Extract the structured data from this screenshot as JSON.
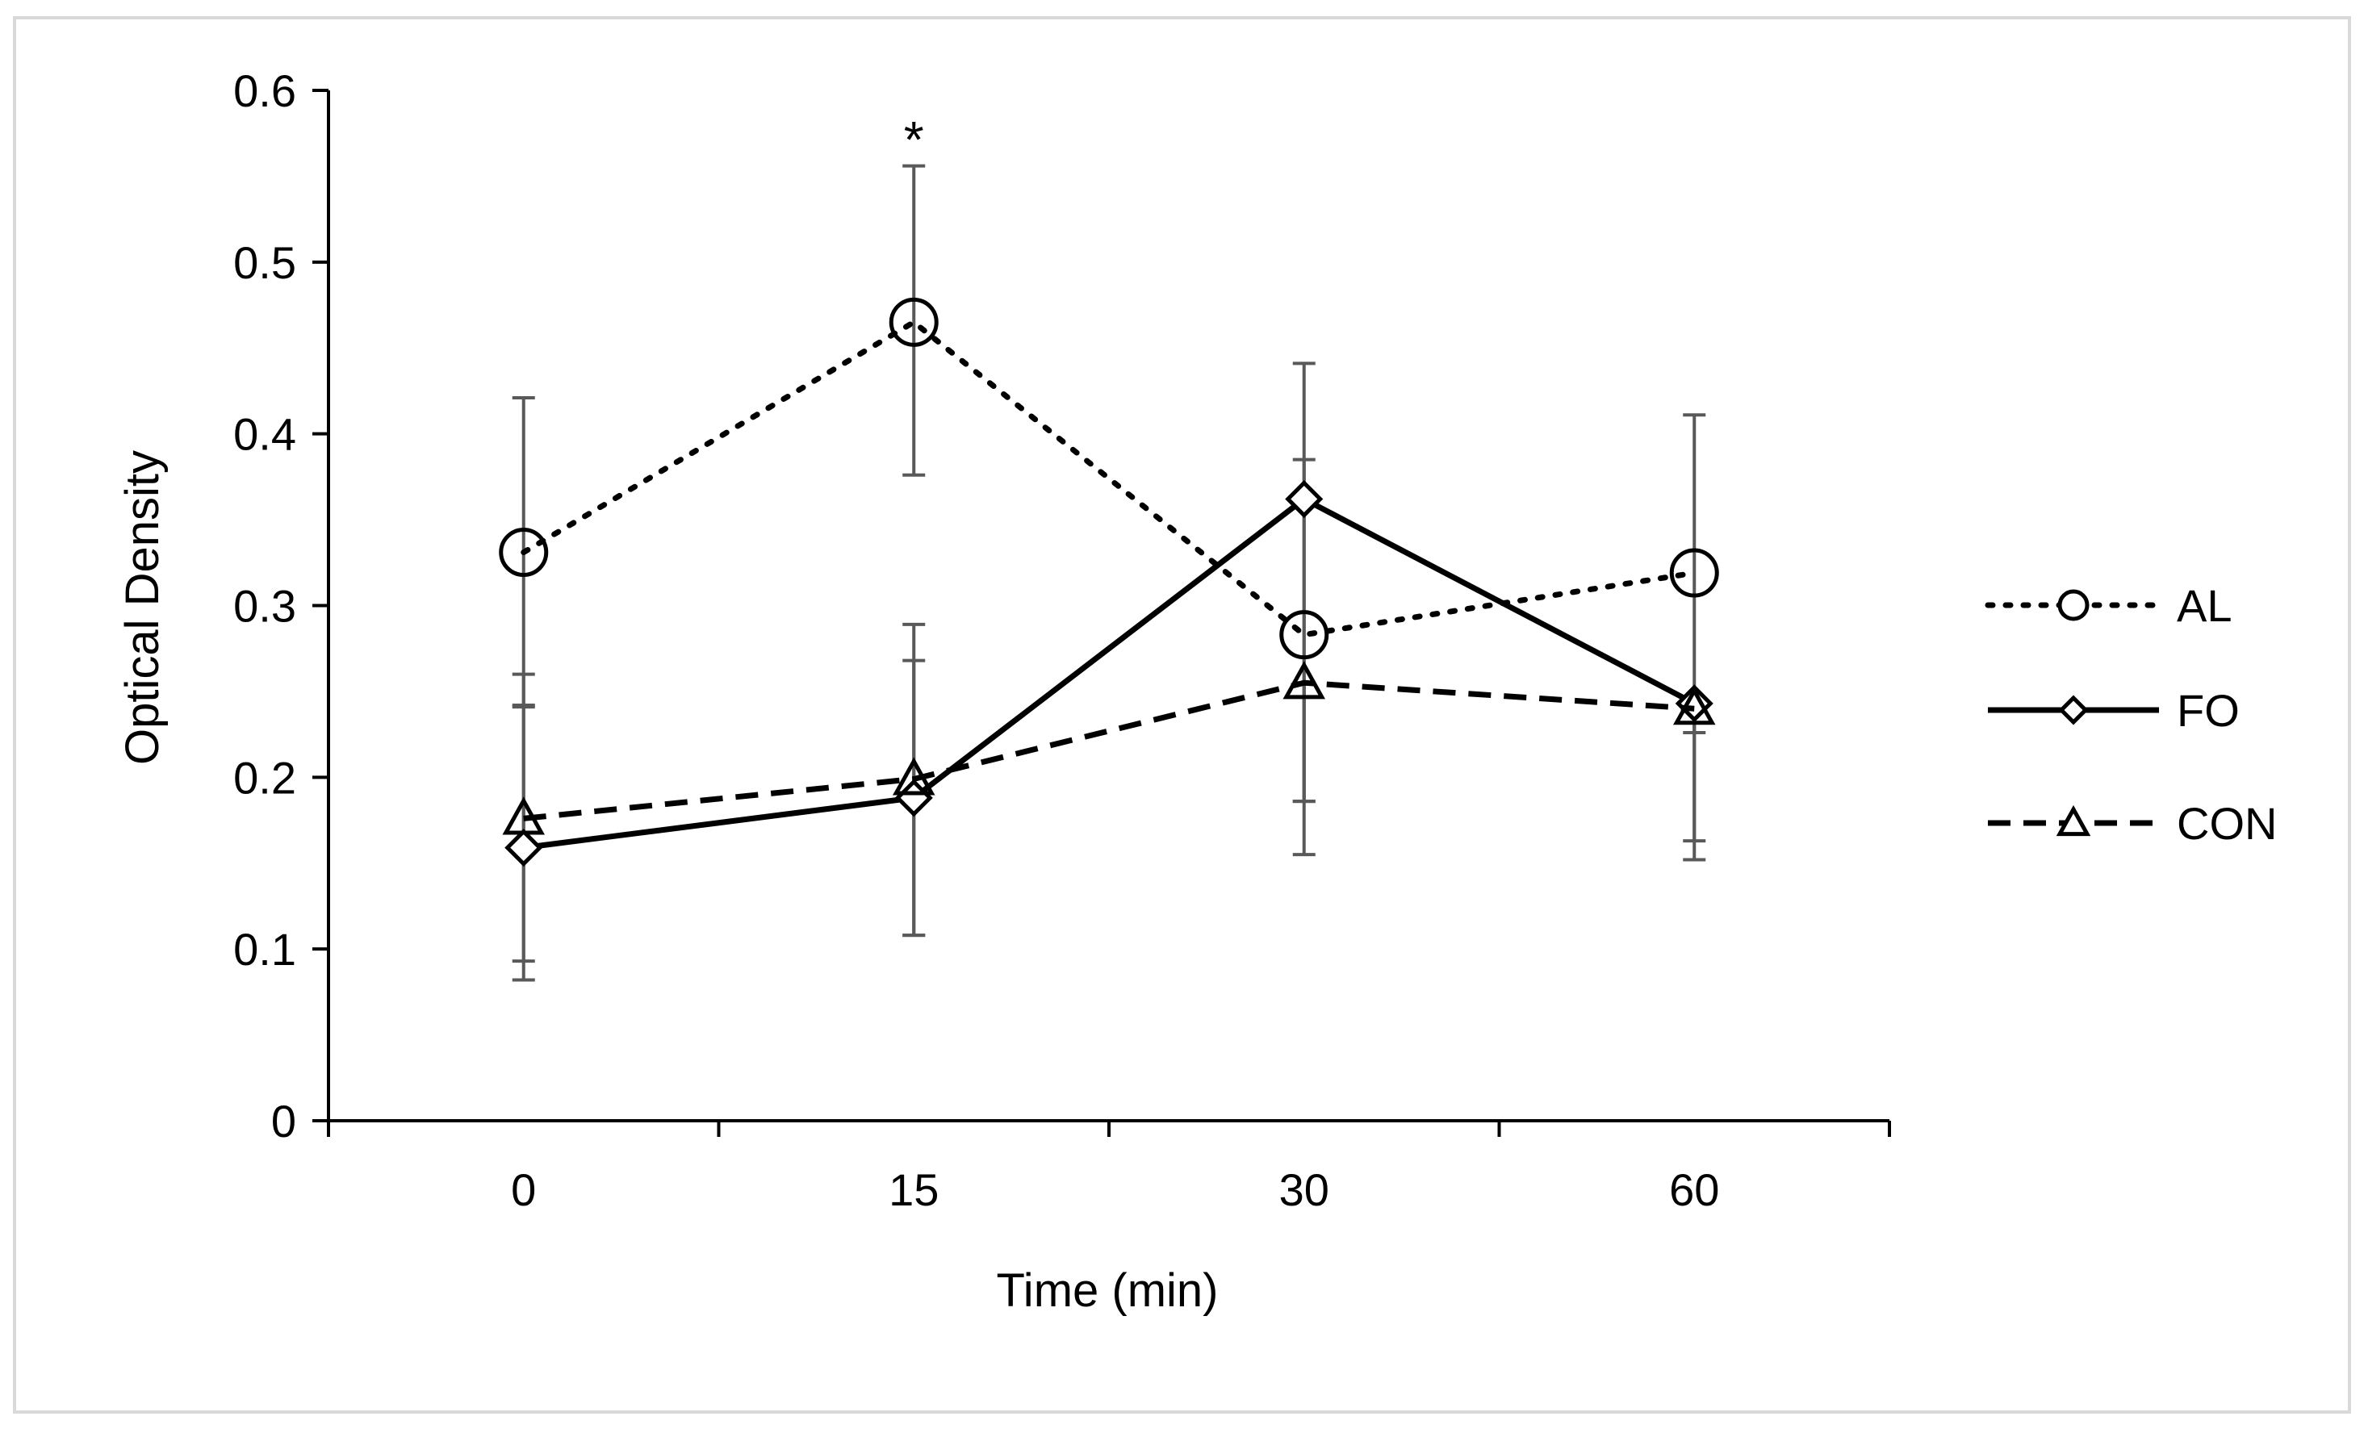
{
  "chart_data": {
    "type": "line",
    "title": "",
    "xlabel": "Time (min)",
    "ylabel": "Optical Density",
    "categories": [
      "0",
      "15",
      "30",
      "60"
    ],
    "y_ticks": [
      "0",
      "0.1",
      "0.2",
      "0.3",
      "0.4",
      "0.5",
      "0.6"
    ],
    "ylim": [
      0,
      0.6
    ],
    "grid": false,
    "legend_position": "right",
    "annotations": [
      {
        "text": "*",
        "category_index": 1,
        "value": 0.575
      }
    ],
    "series": [
      {
        "name": "AL",
        "line_style": "dotted",
        "marker": "circle",
        "values": [
          0.331,
          0.465,
          0.283,
          0.319
        ],
        "error_low": [
          0.241,
          0.376,
          0.186,
          0.226
        ],
        "error_high": [
          0.421,
          0.556,
          0.441,
          0.411
        ]
      },
      {
        "name": "FO",
        "line_style": "solid",
        "marker": "diamond",
        "values": [
          0.159,
          0.188,
          0.362,
          0.243
        ],
        "error_low": [
          0.093,
          0.108,
          0.155,
          0.163
        ],
        "error_high": [
          0.242,
          0.268,
          0.385,
          0.243
        ]
      },
      {
        "name": "CON",
        "line_style": "dashed",
        "marker": "triangle",
        "values": [
          0.176,
          0.199,
          0.255,
          0.24
        ],
        "error_low": [
          0.082,
          0.108,
          0.186,
          0.152
        ],
        "error_high": [
          0.26,
          0.289,
          0.255,
          0.24
        ]
      }
    ],
    "colors": {
      "series": "#000000",
      "error_bar": "#595959",
      "axis": "#000000",
      "frame": "#d9d9d9"
    }
  }
}
